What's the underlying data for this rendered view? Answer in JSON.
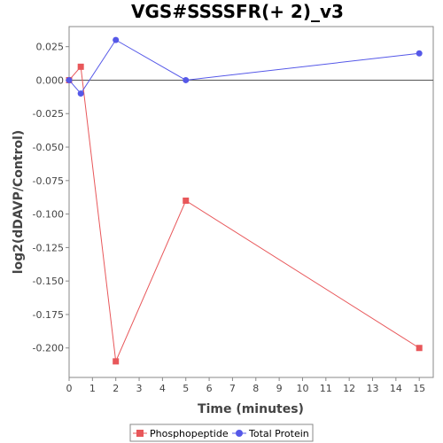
{
  "chart_data": {
    "type": "line",
    "title": "VGS#SSSSFR(+ 2)_v3",
    "xlabel": "Time (minutes)",
    "ylabel": "log2(dDAVP/Control)",
    "xlim": [
      0,
      15.6
    ],
    "ylim": [
      -0.222,
      0.04
    ],
    "xticks": [
      0,
      1,
      2,
      3,
      4,
      5,
      6,
      7,
      8,
      9,
      10,
      11,
      12,
      13,
      14,
      15
    ],
    "yticks": [
      0.025,
      0.0,
      -0.025,
      -0.05,
      -0.075,
      -0.1,
      -0.125,
      -0.15,
      -0.175,
      -0.2
    ],
    "ytick_labels": [
      "0.025",
      "0.000",
      "-0.025",
      "-0.050",
      "-0.075",
      "-0.100",
      "-0.125",
      "-0.150",
      "-0.175",
      "-0.200"
    ],
    "zero_line": true,
    "grid": false,
    "legend_position": "bottom",
    "series": [
      {
        "name": "Phosphopeptide",
        "color": "#e8575a",
        "marker": "square",
        "x": [
          0,
          0.5,
          2,
          5,
          15
        ],
        "y": [
          0.0,
          0.01,
          -0.21,
          -0.09,
          -0.2
        ]
      },
      {
        "name": "Total Protein",
        "color": "#5558e8",
        "marker": "circle",
        "x": [
          0,
          0.5,
          2,
          5,
          15
        ],
        "y": [
          0.0,
          -0.01,
          0.03,
          0.0,
          0.02
        ]
      }
    ]
  }
}
